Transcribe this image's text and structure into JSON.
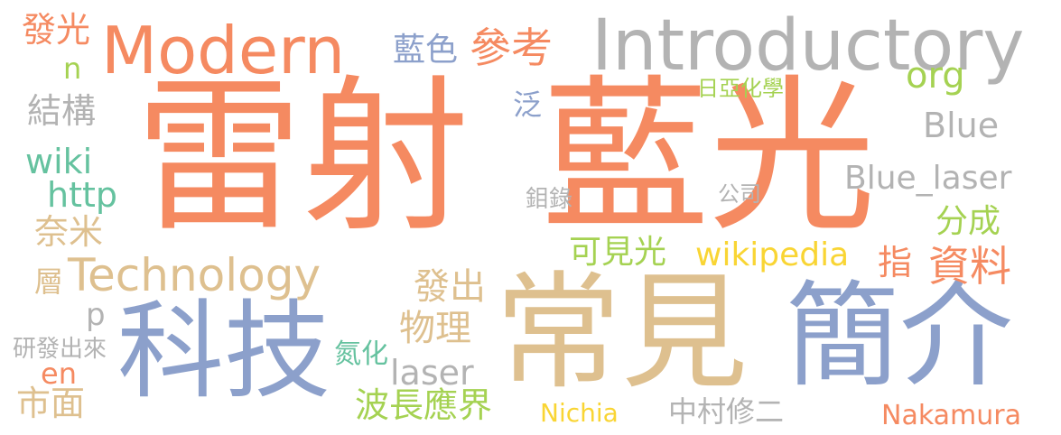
{
  "palette": {
    "orange": "#F58A61",
    "tan": "#DEC08F",
    "blue": "#8CA0CB",
    "gray": "#B3B3B3",
    "green": "#A5D252",
    "teal": "#65C29F",
    "yellow": "#F9D534"
  },
  "words": [
    {
      "id": "word-lei-she",
      "text": "雷射",
      "color": "#F58A61"
    },
    {
      "id": "word-lan-guang",
      "text": "藍光",
      "color": "#F58A61"
    },
    {
      "id": "word-chang-jian",
      "text": "常見",
      "color": "#DEC08F"
    },
    {
      "id": "word-jian-jie",
      "text": "簡介",
      "color": "#8CA0CB"
    },
    {
      "id": "word-ke-ji",
      "text": "科技",
      "color": "#8CA0CB"
    },
    {
      "id": "word-introductory",
      "text": "Introductory",
      "color": "#B3B3B3"
    },
    {
      "id": "word-modern",
      "text": "Modern",
      "color": "#F58A61"
    },
    {
      "id": "word-technology",
      "text": "Technology",
      "color": "#DEC08F"
    },
    {
      "id": "word-blue-laser",
      "text": "Blue_laser",
      "color": "#B3B3B3"
    },
    {
      "id": "word-blue",
      "text": "Blue",
      "color": "#B3B3B3"
    },
    {
      "id": "word-lan-se",
      "text": "藍色",
      "color": "#8CA0CB"
    },
    {
      "id": "word-can-kao",
      "text": "參考",
      "color": "#F58A61"
    },
    {
      "id": "word-fa-guang",
      "text": "發光",
      "color": "#F58A61"
    },
    {
      "id": "word-n",
      "text": "n",
      "color": "#A5D252"
    },
    {
      "id": "word-jie-gou",
      "text": "結構",
      "color": "#B3B3B3"
    },
    {
      "id": "word-wiki",
      "text": "wiki",
      "color": "#65C29F"
    },
    {
      "id": "word-http",
      "text": "http",
      "color": "#65C29F"
    },
    {
      "id": "word-nai-mi",
      "text": "奈米",
      "color": "#DEC08F"
    },
    {
      "id": "word-ceng",
      "text": "層",
      "color": "#DEC08F"
    },
    {
      "id": "word-p",
      "text": "p",
      "color": "#B3B3B3"
    },
    {
      "id": "word-yan-fa-chu-lai",
      "text": "研發出來",
      "color": "#B3B3B3"
    },
    {
      "id": "word-en",
      "text": "en",
      "color": "#F58A61"
    },
    {
      "id": "word-shi-mian",
      "text": "市面",
      "color": "#DEC08F"
    },
    {
      "id": "word-fan",
      "text": "泛",
      "color": "#8CA0CB"
    },
    {
      "id": "word-ri-ya-hua-xue",
      "text": "日亞化學",
      "color": "#A5D252"
    },
    {
      "id": "word-org",
      "text": "org",
      "color": "#A5D252"
    },
    {
      "id": "word-shen-lu",
      "text": "鉬錄",
      "color": "#B3B3B3"
    },
    {
      "id": "word-gong-si",
      "text": "公司",
      "color": "#B3B3B3"
    },
    {
      "id": "word-fen-cheng",
      "text": "分成",
      "color": "#A5D252"
    },
    {
      "id": "word-ke-jian-guang",
      "text": "可見光",
      "color": "#A5D252"
    },
    {
      "id": "word-wikipedia",
      "text": "wikipedia",
      "color": "#F9D534"
    },
    {
      "id": "word-zhi",
      "text": "指",
      "color": "#F58A61"
    },
    {
      "id": "word-zi-liao",
      "text": "資料",
      "color": "#F58A61"
    },
    {
      "id": "word-fa-chu",
      "text": "發出",
      "color": "#DEC08F"
    },
    {
      "id": "word-wu-li",
      "text": "物理",
      "color": "#DEC08F"
    },
    {
      "id": "word-dan-hua",
      "text": "氮化",
      "color": "#65C29F"
    },
    {
      "id": "word-laser",
      "text": "laser",
      "color": "#B3B3B3"
    },
    {
      "id": "word-bo-chang-ying-jie",
      "text": "波長應界",
      "color": "#A5D252"
    },
    {
      "id": "word-nichia",
      "text": "Nichia",
      "color": "#F9D534"
    },
    {
      "id": "word-zhong-cun-xiu-er",
      "text": "中村修二",
      "color": "#B3B3B3"
    },
    {
      "id": "word-nakamura",
      "text": "Nakamura",
      "color": "#F58A61"
    }
  ]
}
